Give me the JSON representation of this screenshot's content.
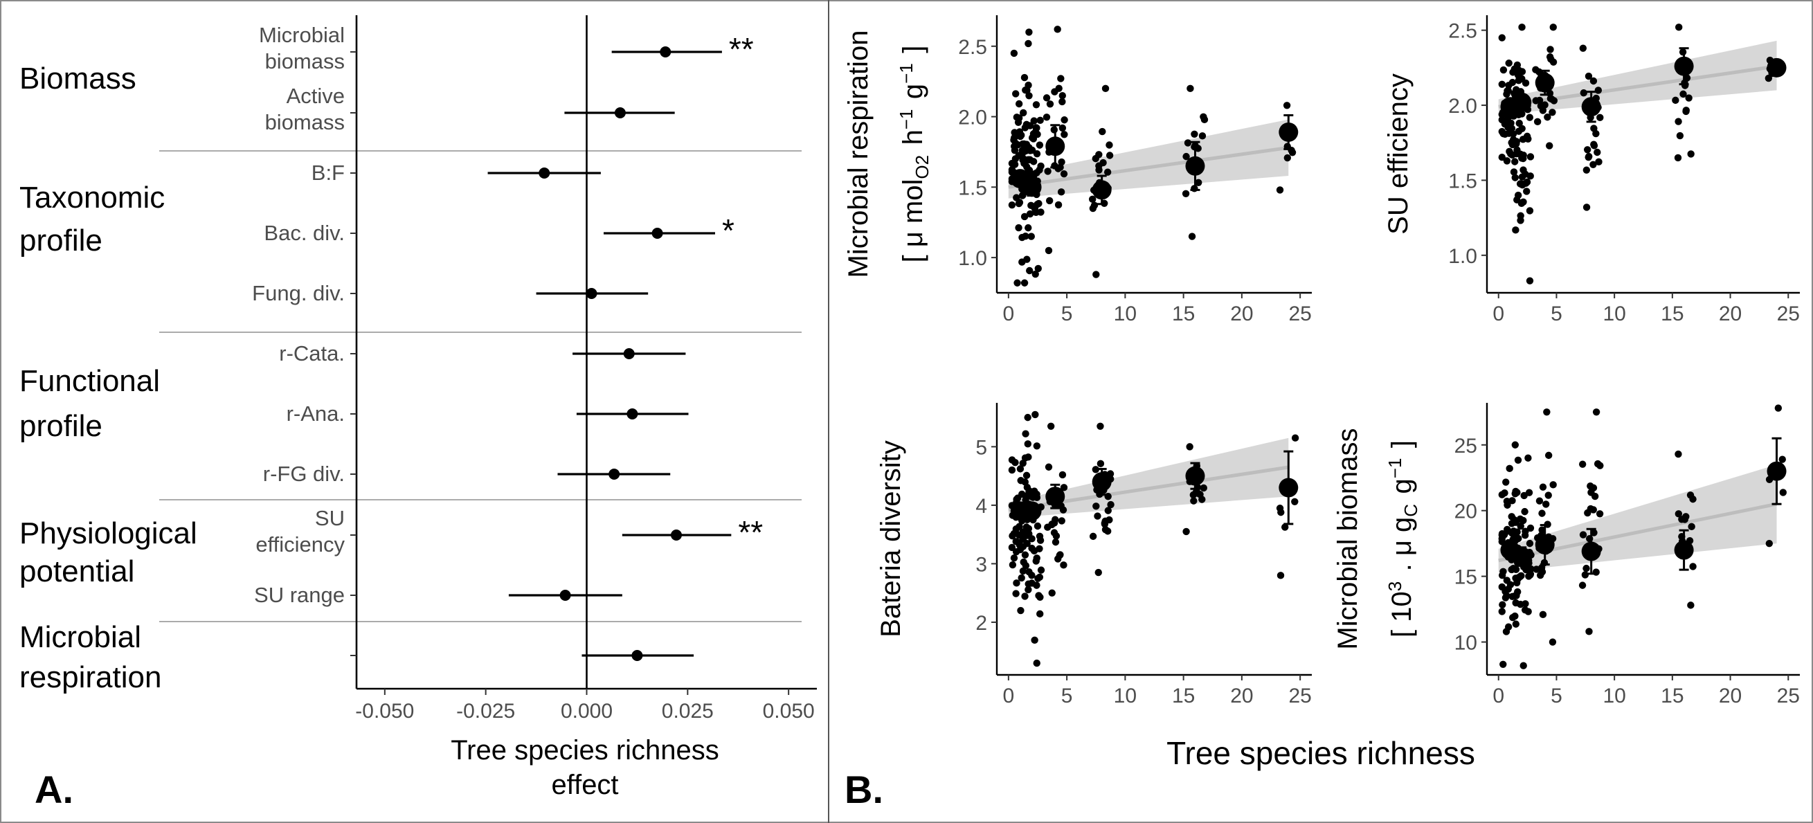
{
  "panel_labels": {
    "a": "A.",
    "b": "B."
  },
  "chart_data": [
    {
      "type": "forest",
      "xlabel": "Tree species richness effect",
      "xlim": [
        -0.057,
        0.057
      ],
      "xticks": [
        "-0.050",
        "-0.025",
        "0.000",
        "0.025",
        "0.050"
      ],
      "xtick_values": [
        -0.05,
        -0.025,
        0,
        0.025,
        0.05
      ],
      "groups": [
        {
          "name": "Biomass",
          "name_lines": [
            "Biomass"
          ]
        },
        {
          "name": "Taxonomic profile",
          "name_lines": [
            "Taxonomic",
            "profile"
          ]
        },
        {
          "name": "Functional profile",
          "name_lines": [
            "Functional",
            "profile"
          ]
        },
        {
          "name": "Physiological potential",
          "name_lines": [
            "Physiological",
            "potential"
          ]
        },
        {
          "name": "Microbial respiration",
          "name_lines": [
            "Microbial",
            "respiration"
          ]
        }
      ],
      "rows": [
        {
          "label": "Microbial biomass",
          "label_lines": [
            "Microbial",
            "biomass"
          ],
          "group": "Biomass",
          "estimate": 0.0195,
          "ci": [
            0.0062,
            0.0335
          ],
          "sig": "**"
        },
        {
          "label": "Active biomass",
          "label_lines": [
            "Active",
            "biomass"
          ],
          "group": "Biomass",
          "estimate": 0.0083,
          "ci": [
            -0.0055,
            0.0218
          ],
          "sig": ""
        },
        {
          "label": "B:F",
          "label_lines": [
            "B:F"
          ],
          "group": "Taxonomic profile",
          "estimate": -0.0105,
          "ci": [
            -0.0245,
            0.0035
          ],
          "sig": ""
        },
        {
          "label": "Bac. div.",
          "label_lines": [
            "Bac. div."
          ],
          "group": "Taxonomic profile",
          "estimate": 0.0175,
          "ci": [
            0.0042,
            0.0318
          ],
          "sig": "*"
        },
        {
          "label": "Fung. div.",
          "label_lines": [
            "Fung. div."
          ],
          "group": "Taxonomic profile",
          "estimate": 0.0012,
          "ci": [
            -0.0125,
            0.0152
          ],
          "sig": ""
        },
        {
          "label": "r-Cata.",
          "label_lines": [
            "r-Cata."
          ],
          "group": "Functional profile",
          "estimate": 0.0105,
          "ci": [
            -0.0035,
            0.0245
          ],
          "sig": ""
        },
        {
          "label": "r-Ana.",
          "label_lines": [
            "r-Ana."
          ],
          "group": "Functional profile",
          "estimate": 0.0113,
          "ci": [
            -0.0025,
            0.0252
          ],
          "sig": ""
        },
        {
          "label": "r-FG div.",
          "label_lines": [
            "r-FG div."
          ],
          "group": "Functional profile",
          "estimate": 0.0068,
          "ci": [
            -0.0072,
            0.0207
          ],
          "sig": ""
        },
        {
          "label": "SU efficiency",
          "label_lines": [
            "SU",
            "efficiency"
          ],
          "group": "Physiological potential",
          "estimate": 0.0222,
          "ci": [
            0.0088,
            0.0358
          ],
          "sig": "**"
        },
        {
          "label": "SU range",
          "label_lines": [
            "SU range"
          ],
          "group": "Physiological potential",
          "estimate": -0.0053,
          "ci": [
            -0.0193,
            0.0088
          ],
          "sig": ""
        },
        {
          "label": "",
          "label_lines": [
            ""
          ],
          "group": "Microbial respiration",
          "estimate": 0.0125,
          "ci": [
            -0.0012,
            0.0265
          ],
          "sig": ""
        }
      ]
    },
    {
      "type": "scatter",
      "ylabel_lines": [
        "Microbial respiration",
        "[ μ mol<sub>O2</sub> h<sup>−1</sup> g<sup>−1</sup> ]"
      ],
      "xlim": [
        -1,
        26
      ],
      "ylim": [
        0.75,
        2.72
      ],
      "xticks": [
        0,
        5,
        10,
        15,
        20,
        25
      ],
      "yticks": [
        "1.0",
        "1.5",
        "2.0",
        "2.5"
      ],
      "ytick_values": [
        1.0,
        1.5,
        2.0,
        2.5
      ],
      "fit": {
        "x": [
          0,
          24
        ],
        "y": [
          1.5,
          1.78
        ],
        "ci_low": [
          1.42,
          1.58
        ],
        "ci_high": [
          1.58,
          1.98
        ]
      },
      "means": [
        {
          "x": 1,
          "y": 1.56,
          "err": 0.05
        },
        {
          "x": 2,
          "y": 1.5,
          "err": 0.06
        },
        {
          "x": 4,
          "y": 1.79,
          "err": 0.15
        },
        {
          "x": 8,
          "y": 1.48,
          "err": 0.1
        },
        {
          "x": 16,
          "y": 1.65,
          "err": 0.17
        },
        {
          "x": 24,
          "y": 1.89,
          "err": 0.12
        }
      ],
      "points": {
        "1": {
          "n": 60,
          "range": [
            0.82,
            2.45
          ]
        },
        "2": {
          "n": 55,
          "range": [
            0.82,
            2.6
          ]
        },
        "4": {
          "n": 24,
          "range": [
            1.05,
            2.62
          ]
        },
        "8": {
          "n": 22,
          "range": [
            0.88,
            2.2
          ]
        },
        "16": {
          "n": 14,
          "range": [
            1.15,
            2.2
          ]
        },
        "24": {
          "n": 6,
          "range": [
            1.48,
            2.08
          ]
        }
      }
    },
    {
      "type": "scatter",
      "ylabel_lines": [
        "SU efficiency"
      ],
      "xlim": [
        -1,
        26
      ],
      "ylim": [
        0.75,
        2.6
      ],
      "xticks": [
        0,
        5,
        10,
        15,
        20,
        25
      ],
      "yticks": [
        "1.0",
        "1.5",
        "2.0",
        "2.5"
      ],
      "ytick_values": [
        1.0,
        1.5,
        2.0,
        2.5
      ],
      "fit": {
        "x": [
          0,
          24
        ],
        "y": [
          1.99,
          2.26
        ],
        "ci_low": [
          1.94,
          2.1
        ],
        "ci_high": [
          2.04,
          2.43
        ]
      },
      "means": [
        {
          "x": 1,
          "y": 1.99,
          "err": 0.04
        },
        {
          "x": 2,
          "y": 2.02,
          "err": 0.04
        },
        {
          "x": 4,
          "y": 2.15,
          "err": 0.08
        },
        {
          "x": 8,
          "y": 1.99,
          "err": 0.1
        },
        {
          "x": 16,
          "y": 2.26,
          "err": 0.12
        },
        {
          "x": 24,
          "y": 2.25,
          "err": 0.03
        }
      ],
      "points": {
        "1": {
          "n": 60,
          "range": [
            1.4,
            2.45
          ]
        },
        "2": {
          "n": 55,
          "range": [
            0.83,
            2.52
          ]
        },
        "4": {
          "n": 24,
          "range": [
            1.73,
            2.52
          ]
        },
        "8": {
          "n": 22,
          "range": [
            1.32,
            2.38
          ]
        },
        "16": {
          "n": 14,
          "range": [
            1.65,
            2.52
          ]
        },
        "24": {
          "n": 6,
          "range": [
            2.18,
            2.3
          ]
        }
      }
    },
    {
      "type": "scatter",
      "ylabel_lines": [
        "Bateria diversity"
      ],
      "xlim": [
        -1,
        26
      ],
      "ylim": [
        1.1,
        5.75
      ],
      "xticks": [
        0,
        5,
        10,
        15,
        20,
        25
      ],
      "yticks": [
        "2",
        "3",
        "4",
        "5"
      ],
      "ytick_values": [
        2,
        3,
        4,
        5
      ],
      "fit": {
        "x": [
          0,
          24
        ],
        "y": [
          3.92,
          4.65
        ],
        "ci_low": [
          3.78,
          4.15
        ],
        "ci_high": [
          4.05,
          5.15
        ]
      },
      "means": [
        {
          "x": 1,
          "y": 3.9,
          "err": 0.12
        },
        {
          "x": 2,
          "y": 3.9,
          "err": 0.13
        },
        {
          "x": 4,
          "y": 4.15,
          "err": 0.2
        },
        {
          "x": 8,
          "y": 4.4,
          "err": 0.22
        },
        {
          "x": 16,
          "y": 4.5,
          "err": 0.22
        },
        {
          "x": 24,
          "y": 4.3,
          "err": 0.62
        }
      ],
      "points": {
        "1": {
          "n": 60,
          "range": [
            2.2,
            5.5
          ]
        },
        "2": {
          "n": 55,
          "range": [
            1.3,
            5.55
          ]
        },
        "4": {
          "n": 24,
          "range": [
            2.5,
            5.35
          ]
        },
        "8": {
          "n": 22,
          "range": [
            2.85,
            5.35
          ]
        },
        "16": {
          "n": 14,
          "range": [
            3.55,
            5.0
          ]
        },
        "24": {
          "n": 6,
          "range": [
            2.8,
            5.15
          ]
        }
      }
    },
    {
      "type": "scatter",
      "ylabel_lines": [
        "Microbial biomass",
        "[ 10<sup>3</sup> . μ g<sub>C</sub> g<sup>−1</sup> ]"
      ],
      "xlim": [
        -1,
        26
      ],
      "ylim": [
        7.5,
        28.2
      ],
      "xticks": [
        0,
        5,
        10,
        15,
        20,
        25
      ],
      "yticks": [
        "10",
        "15",
        "20",
        "25"
      ],
      "ytick_values": [
        10,
        15,
        20,
        25
      ],
      "fit": {
        "x": [
          0,
          24
        ],
        "y": [
          16.2,
          20.5
        ],
        "ci_low": [
          15.3,
          17.5
        ],
        "ci_high": [
          17.1,
          23.5
        ]
      },
      "means": [
        {
          "x": 1,
          "y": 17.0,
          "err": 0.6
        },
        {
          "x": 2,
          "y": 16.5,
          "err": 0.7
        },
        {
          "x": 4,
          "y": 17.4,
          "err": 1.5
        },
        {
          "x": 8,
          "y": 16.9,
          "err": 1.7
        },
        {
          "x": 16,
          "y": 17.0,
          "err": 1.5
        },
        {
          "x": 24,
          "y": 23.0,
          "err": 2.5
        }
      ],
      "points": {
        "1": {
          "n": 60,
          "range": [
            8.3,
            25.0
          ]
        },
        "2": {
          "n": 55,
          "range": [
            8.2,
            24.0
          ]
        },
        "4": {
          "n": 24,
          "range": [
            10.0,
            27.5
          ]
        },
        "8": {
          "n": 22,
          "range": [
            10.8,
            27.5
          ]
        },
        "16": {
          "n": 14,
          "range": [
            12.8,
            24.3
          ]
        },
        "24": {
          "n": 6,
          "range": [
            17.5,
            27.8
          ]
        }
      }
    }
  ],
  "panel_b_xlabel": "Tree species richness"
}
